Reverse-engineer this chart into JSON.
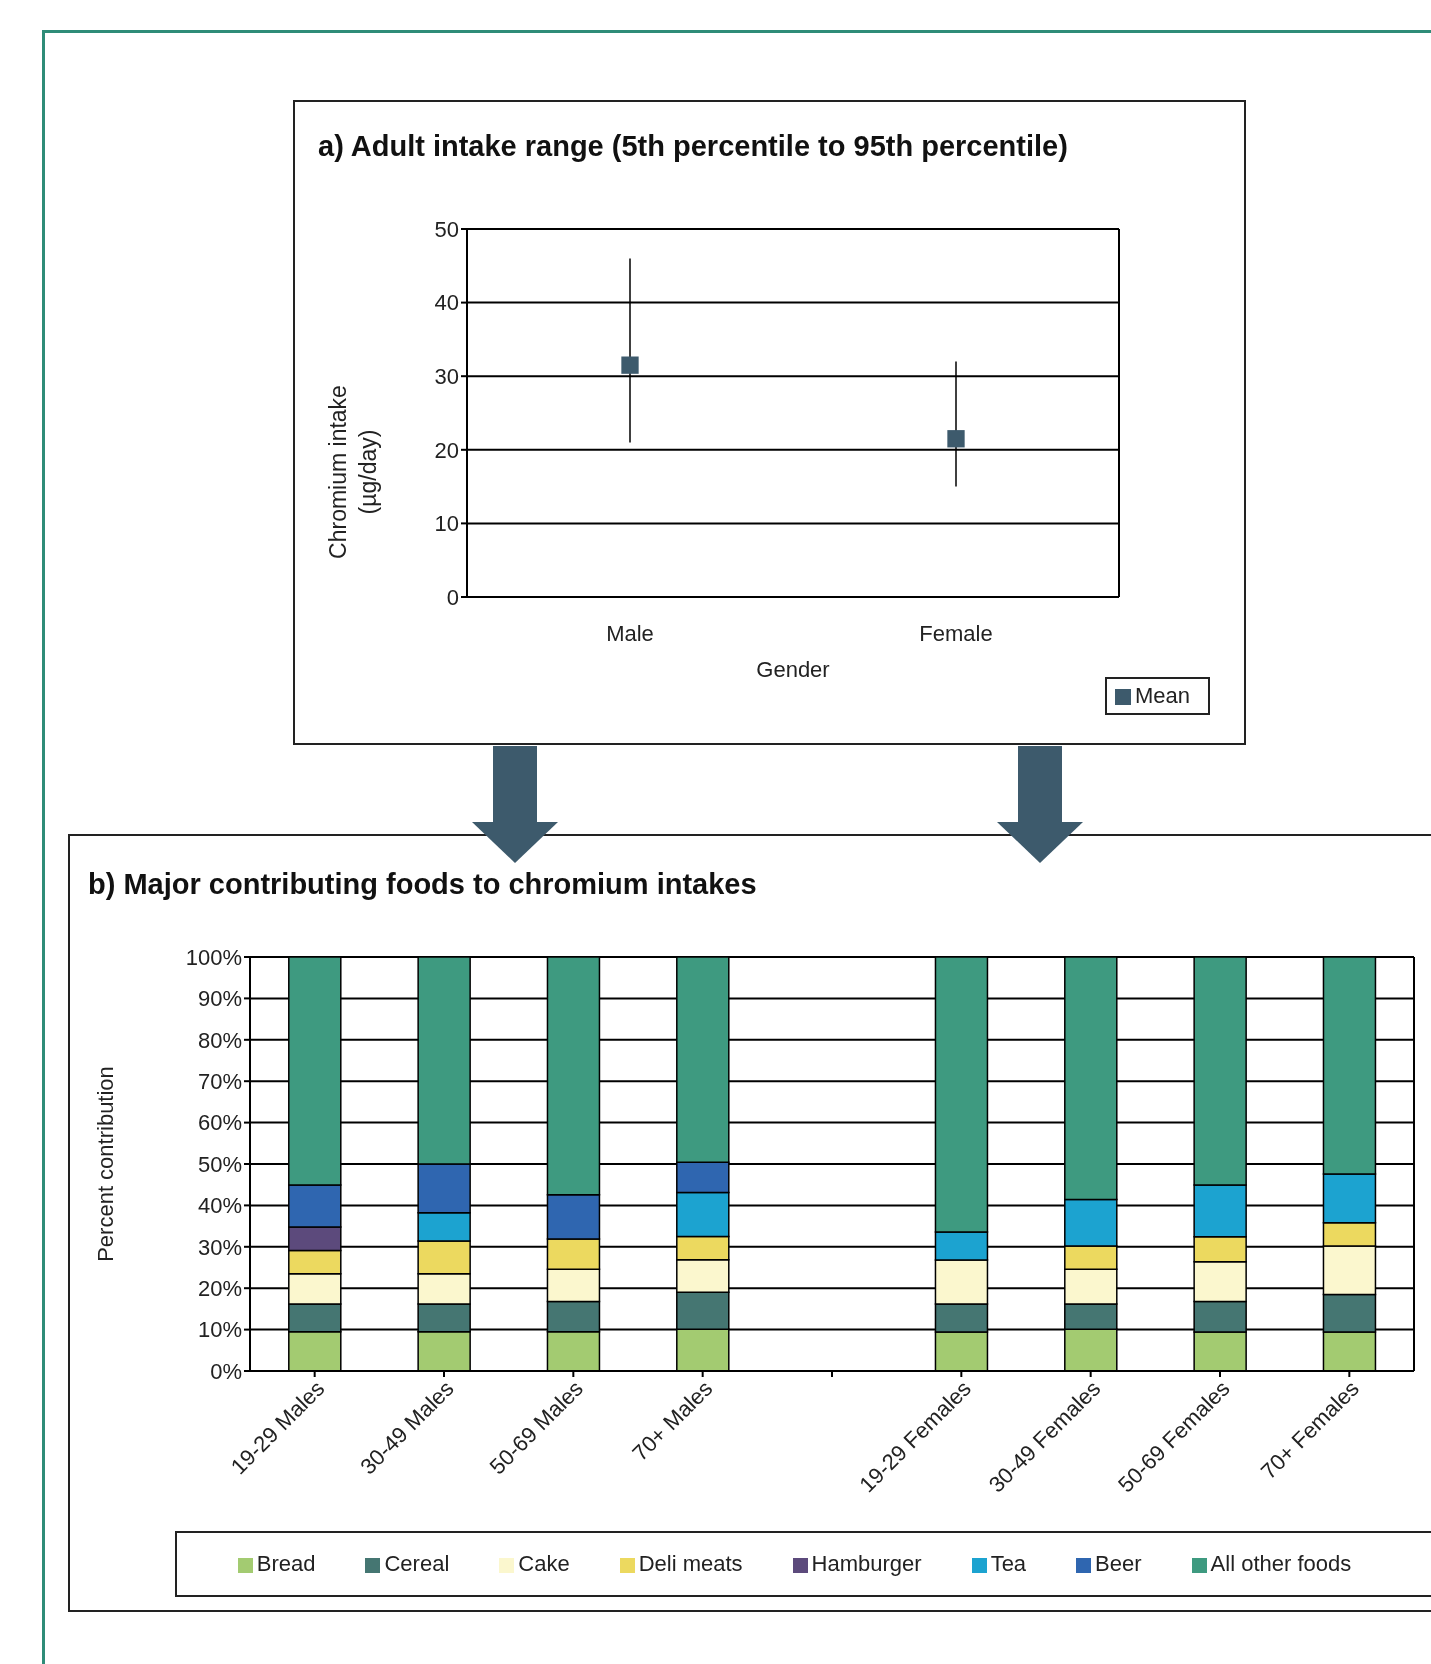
{
  "chart_data": [
    {
      "type": "scatter",
      "title": "a) Adult intake range (5th percentile to 95th percentile)",
      "xlabel": "Gender",
      "ylabel": "Chromium intake (µg/day)",
      "categories": [
        "Male",
        "Female"
      ],
      "series": [
        {
          "name": "Mean",
          "color": "#3d5a6c",
          "values": [
            31.5,
            21.5
          ],
          "errors": [
            [
              21,
              46
            ],
            [
              15,
              32
            ]
          ]
        }
      ],
      "ylim": [
        0,
        50
      ],
      "yticks": [
        0,
        10,
        20,
        30,
        40,
        50
      ],
      "grid": "y",
      "legend": "bottom right",
      "marker": "square"
    },
    {
      "type": "bar",
      "stacked": true,
      "title": "b) Major contributing foods to chromium intakes",
      "ylabel": "Percent contribution",
      "categories": [
        "19-29 Males",
        "30-49 Males",
        "50-69 Males",
        "70+ Males",
        null,
        "19-29 Females",
        "30-49 Females",
        "50-69 Females",
        "70+ Females"
      ],
      "series": [
        {
          "name": "Bread",
          "color": "#a3cb71",
          "values": [
            9.5,
            9.5,
            9.5,
            10.1,
            null,
            9.4,
            10.1,
            9.4,
            9.4
          ]
        },
        {
          "name": "Cereal",
          "color": "#457672",
          "values": [
            6.7,
            6.7,
            7.3,
            8.9,
            null,
            6.8,
            6.1,
            7.4,
            9.1
          ]
        },
        {
          "name": "Cake",
          "color": "#fbf7ce",
          "values": [
            7.3,
            7.3,
            7.8,
            7.9,
            null,
            10.6,
            8.4,
            9.6,
            11.7
          ]
        },
        {
          "name": "Deli meats",
          "color": "#ecd95f",
          "values": [
            5.6,
            7.9,
            7.3,
            5.6,
            null,
            0,
            5.6,
            6.0,
            5.6
          ]
        },
        {
          "name": "Hamburger",
          "color": "#5c4a7c",
          "values": [
            5.7,
            0,
            0,
            0,
            null,
            0,
            0,
            0,
            0
          ]
        },
        {
          "name": "Tea",
          "color": "#1ca3d0",
          "values": [
            0,
            6.8,
            0,
            10.6,
            null,
            6.8,
            11.2,
            12.5,
            11.8
          ]
        },
        {
          "name": "Beer",
          "color": "#2f66b0",
          "values": [
            10.1,
            11.8,
            10.7,
            7.3,
            null,
            0,
            0,
            0,
            0
          ]
        },
        {
          "name": "All other foods",
          "color": "#3e9a80",
          "values": [
            55.1,
            50,
            57.4,
            49.6,
            null,
            66.4,
            58.6,
            55.1,
            52.4
          ]
        }
      ],
      "ylim": [
        0,
        100
      ],
      "yticks": [
        {
          "value": 0,
          "label": "0%"
        },
        {
          "value": 10,
          "label": "10%"
        },
        {
          "value": 20,
          "label": "20%"
        },
        {
          "value": 30,
          "label": "30%"
        },
        {
          "value": 40,
          "label": "40%"
        },
        {
          "value": 50,
          "label": "50%"
        },
        {
          "value": 60,
          "label": "60%"
        },
        {
          "value": 70,
          "label": "70%"
        },
        {
          "value": 80,
          "label": "80%"
        },
        {
          "value": 90,
          "label": "90%"
        },
        {
          "value": 100,
          "label": "100%"
        }
      ],
      "grid": "y",
      "legend": "bottom"
    }
  ]
}
